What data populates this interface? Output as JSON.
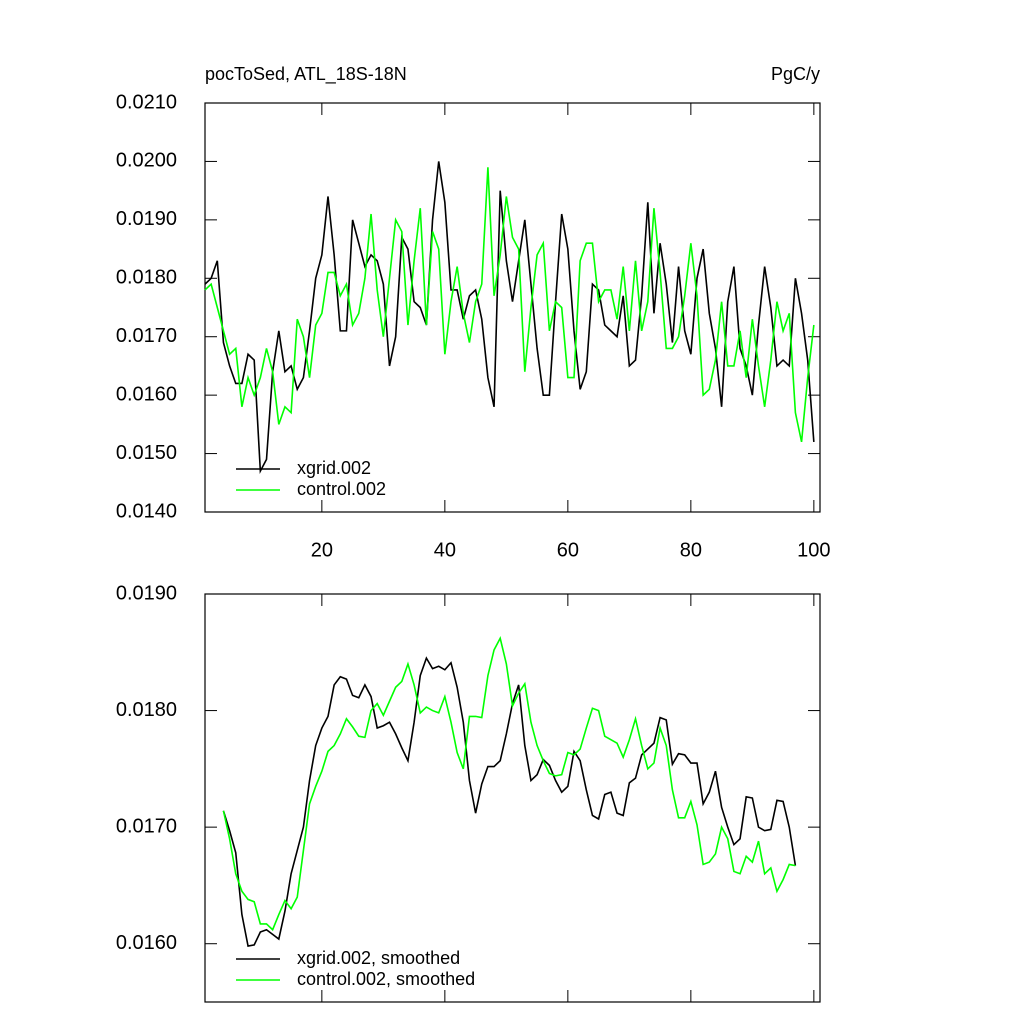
{
  "chart_data": [
    {
      "type": "line",
      "title": "pocToSed, ATL_18S-18N",
      "units_label": "PgC/y",
      "x": [
        1,
        2,
        3,
        4,
        5,
        6,
        7,
        8,
        9,
        10,
        11,
        12,
        13,
        14,
        15,
        16,
        17,
        18,
        19,
        20,
        21,
        22,
        23,
        24,
        25,
        26,
        27,
        28,
        29,
        30,
        31,
        32,
        33,
        34,
        35,
        36,
        37,
        38,
        39,
        40,
        41,
        42,
        43,
        44,
        45,
        46,
        47,
        48,
        49,
        50,
        51,
        52,
        53,
        54,
        55,
        56,
        57,
        58,
        59,
        60,
        61,
        62,
        63,
        64,
        65,
        66,
        67,
        68,
        69,
        70,
        71,
        72,
        73,
        74,
        75,
        76,
        77,
        78,
        79,
        80,
        81,
        82,
        83,
        84,
        85,
        86,
        87,
        88,
        89,
        90,
        91,
        92,
        93,
        94,
        95,
        96,
        97,
        98,
        99,
        100
      ],
      "series": [
        {
          "name": "xgrid.002",
          "color": "#000000",
          "values": [
            0.0179,
            0.018,
            0.0183,
            0.0169,
            0.0165,
            0.0162,
            0.0162,
            0.0167,
            0.0166,
            0.0147,
            0.0149,
            0.0164,
            0.0171,
            0.0164,
            0.0165,
            0.0161,
            0.0163,
            0.0171,
            0.018,
            0.0184,
            0.0194,
            0.0184,
            0.0171,
            0.0171,
            0.019,
            0.0186,
            0.0182,
            0.0184,
            0.0183,
            0.0179,
            0.0165,
            0.017,
            0.0187,
            0.0185,
            0.0176,
            0.0175,
            0.0172,
            0.019,
            0.02,
            0.0193,
            0.0178,
            0.0178,
            0.0173,
            0.0177,
            0.0178,
            0.0173,
            0.0163,
            0.0158,
            0.0195,
            0.0183,
            0.0176,
            0.0183,
            0.019,
            0.0179,
            0.0168,
            0.016,
            0.016,
            0.0176,
            0.0191,
            0.0185,
            0.0171,
            0.0161,
            0.0164,
            0.0179,
            0.0178,
            0.0172,
            0.0171,
            0.017,
            0.0177,
            0.0165,
            0.0166,
            0.0177,
            0.0193,
            0.0174,
            0.0186,
            0.0179,
            0.0169,
            0.0182,
            0.0171,
            0.0167,
            0.018,
            0.0185,
            0.0174,
            0.0168,
            0.0158,
            0.0176,
            0.0182,
            0.0168,
            0.0165,
            0.016,
            0.0172,
            0.0182,
            0.0175,
            0.0165,
            0.0166,
            0.0165,
            0.018,
            0.0174,
            0.0166,
            0.0152
          ]
        },
        {
          "name": "control.002",
          "color": "#00ff00",
          "values": [
            0.0178,
            0.0179,
            0.0175,
            0.0171,
            0.0167,
            0.0168,
            0.0158,
            0.0163,
            0.016,
            0.0163,
            0.0168,
            0.0164,
            0.0155,
            0.0158,
            0.0157,
            0.0173,
            0.017,
            0.0163,
            0.0172,
            0.0174,
            0.0181,
            0.0181,
            0.0177,
            0.0179,
            0.0172,
            0.0174,
            0.018,
            0.0191,
            0.0178,
            0.017,
            0.018,
            0.019,
            0.0188,
            0.0172,
            0.0183,
            0.0192,
            0.0172,
            0.0188,
            0.0185,
            0.0167,
            0.0176,
            0.0182,
            0.0174,
            0.0169,
            0.0176,
            0.0179,
            0.0199,
            0.0177,
            0.0184,
            0.0194,
            0.0187,
            0.0185,
            0.0164,
            0.0175,
            0.0184,
            0.0186,
            0.0171,
            0.0176,
            0.0175,
            0.0163,
            0.0163,
            0.0183,
            0.0186,
            0.0186,
            0.0176,
            0.0178,
            0.0178,
            0.0173,
            0.0182,
            0.0171,
            0.0183,
            0.0171,
            0.0176,
            0.0192,
            0.0181,
            0.0168,
            0.0168,
            0.017,
            0.0177,
            0.0186,
            0.0177,
            0.016,
            0.0161,
            0.0166,
            0.0176,
            0.0165,
            0.0165,
            0.0171,
            0.0163,
            0.0173,
            0.0165,
            0.0158,
            0.0166,
            0.0176,
            0.0171,
            0.0174,
            0.0157,
            0.0152,
            0.0163,
            0.0172
          ]
        }
      ],
      "xlim": [
        1,
        101
      ],
      "xticks": [
        20,
        40,
        60,
        80,
        100
      ],
      "ylim": [
        0.014,
        0.021
      ],
      "yticks": [
        {
          "value": 0.014,
          "label": "0.0140"
        },
        {
          "value": 0.015,
          "label": "0.0150"
        },
        {
          "value": 0.016,
          "label": "0.0160"
        },
        {
          "value": 0.017,
          "label": "0.0170"
        },
        {
          "value": 0.018,
          "label": "0.0180"
        },
        {
          "value": 0.019,
          "label": "0.0190"
        },
        {
          "value": 0.02,
          "label": "0.0200"
        },
        {
          "value": 0.021,
          "label": "0.0210"
        }
      ],
      "legend": "lower left",
      "grid": false
    },
    {
      "type": "line",
      "x": [
        4,
        5,
        6,
        7,
        8,
        9,
        10,
        11,
        12,
        13,
        14,
        15,
        16,
        17,
        18,
        19,
        20,
        21,
        22,
        23,
        24,
        25,
        26,
        27,
        28,
        29,
        30,
        31,
        32,
        33,
        34,
        35,
        36,
        37,
        38,
        39,
        40,
        41,
        42,
        43,
        44,
        45,
        46,
        47,
        48,
        49,
        50,
        51,
        52,
        53,
        54,
        55,
        56,
        57,
        58,
        59,
        60,
        61,
        62,
        63,
        64,
        65,
        66,
        67,
        68,
        69,
        70,
        71,
        72,
        73,
        74,
        75,
        76,
        77,
        78,
        79,
        80,
        81,
        82,
        83,
        84,
        85,
        86,
        87,
        88,
        89,
        90,
        91,
        92,
        93,
        94,
        95,
        96,
        97
      ],
      "series": [
        {
          "name": "xgrid.002, smoothed",
          "color": "#000000",
          "values": [
            0.01714,
            0.01697,
            0.01678,
            0.01625,
            0.01598,
            0.01599,
            0.0161,
            0.01612,
            0.01608,
            0.01604,
            0.01628,
            0.0166,
            0.0168,
            0.017,
            0.0174,
            0.0177,
            0.01785,
            0.01795,
            0.01822,
            0.01829,
            0.01827,
            0.01813,
            0.01811,
            0.01822,
            0.01812,
            0.01785,
            0.01787,
            0.0179,
            0.0178,
            0.01768,
            0.01757,
            0.0179,
            0.0183,
            0.01845,
            0.01836,
            0.01838,
            0.01835,
            0.01841,
            0.0182,
            0.0179,
            0.0174,
            0.01712,
            0.01737,
            0.01752,
            0.01752,
            0.01757,
            0.0178,
            0.01806,
            0.01822,
            0.0177,
            0.0174,
            0.01745,
            0.01758,
            0.01753,
            0.0174,
            0.0173,
            0.01735,
            0.01765,
            0.01757,
            0.01732,
            0.0171,
            0.01707,
            0.01728,
            0.0173,
            0.01712,
            0.0171,
            0.01738,
            0.01742,
            0.01762,
            0.01767,
            0.01772,
            0.01794,
            0.01792,
            0.01754,
            0.01763,
            0.01762,
            0.01755,
            0.01755,
            0.0172,
            0.0173,
            0.01748,
            0.01717,
            0.017,
            0.01685,
            0.0169,
            0.01726,
            0.01725,
            0.017,
            0.01697,
            0.01698,
            0.01723,
            0.01722,
            0.017,
            0.01667
          ]
        },
        {
          "name": "control.002, smoothed",
          "color": "#00ff00",
          "values": [
            0.01714,
            0.0169,
            0.0166,
            0.01645,
            0.01638,
            0.01636,
            0.01617,
            0.01617,
            0.01612,
            0.01625,
            0.01637,
            0.0163,
            0.0164,
            0.0168,
            0.0172,
            0.01735,
            0.01748,
            0.01765,
            0.0177,
            0.0178,
            0.01793,
            0.01786,
            0.01778,
            0.01777,
            0.018,
            0.01806,
            0.01796,
            0.01808,
            0.0182,
            0.01825,
            0.0184,
            0.01822,
            0.01798,
            0.01803,
            0.018,
            0.01798,
            0.01812,
            0.0179,
            0.01764,
            0.0175,
            0.01795,
            0.01795,
            0.01794,
            0.0183,
            0.01852,
            0.01862,
            0.0184,
            0.01804,
            0.01815,
            0.01823,
            0.0179,
            0.0177,
            0.01757,
            0.01746,
            0.01744,
            0.01745,
            0.01764,
            0.01762,
            0.01767,
            0.01785,
            0.01802,
            0.018,
            0.01778,
            0.01775,
            0.01772,
            0.0176,
            0.01775,
            0.01793,
            0.0177,
            0.0175,
            0.01755,
            0.01785,
            0.0177,
            0.01732,
            0.01708,
            0.01708,
            0.01722,
            0.01702,
            0.01668,
            0.0167,
            0.01677,
            0.017,
            0.0169,
            0.01662,
            0.0166,
            0.01675,
            0.0167,
            0.01688,
            0.0166,
            0.01665,
            0.01645,
            0.01655,
            0.01668,
            0.01667
          ]
        }
      ],
      "xlim": [
        1,
        101
      ],
      "ylim": [
        0.0155,
        0.019
      ],
      "yticks": [
        {
          "value": 0.016,
          "label": "0.0160"
        },
        {
          "value": 0.017,
          "label": "0.0170"
        },
        {
          "value": 0.018,
          "label": "0.0180"
        },
        {
          "value": 0.019,
          "label": "0.0190"
        }
      ],
      "legend": "lower left",
      "grid": false
    }
  ]
}
